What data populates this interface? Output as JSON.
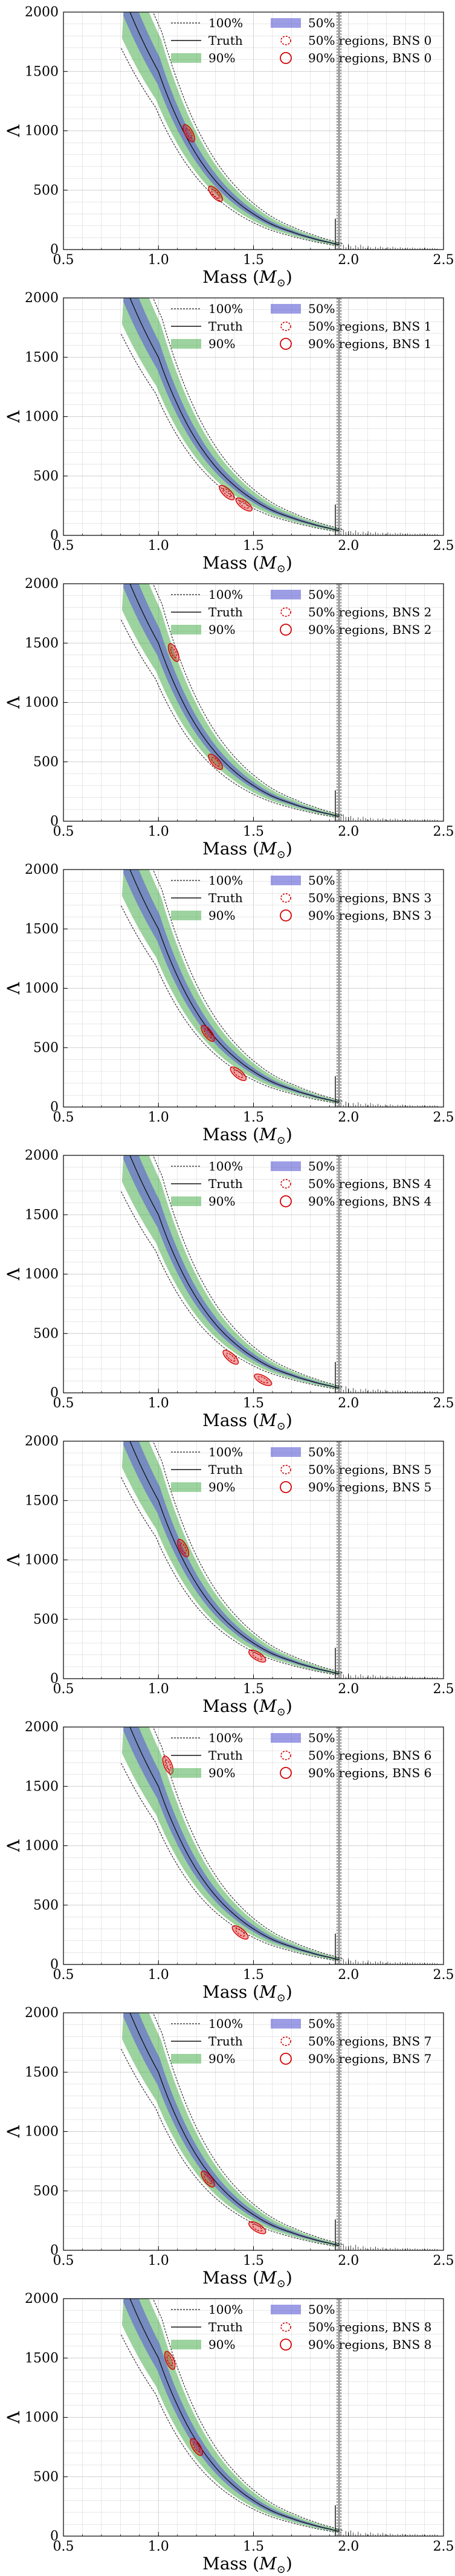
{
  "panels": [
    {
      "index": 0,
      "bns_label": "BNS 0"
    },
    {
      "index": 1,
      "bns_label": "BNS 1"
    },
    {
      "index": 2,
      "bns_label": "BNS 2"
    },
    {
      "index": 3,
      "bns_label": "BNS 3"
    },
    {
      "index": 4,
      "bns_label": "BNS 4"
    },
    {
      "index": 5,
      "bns_label": "BNS 5"
    },
    {
      "index": 6,
      "bns_label": "BNS 6"
    },
    {
      "index": 7,
      "bns_label": "BNS 7"
    },
    {
      "index": 8,
      "bns_label": "BNS 8"
    }
  ],
  "colors": {
    "band_50": "#5b5bd6",
    "band_90": "#4caf50",
    "band_100": "#1b1b1b",
    "truth": "#111111",
    "posterior": "#d40000",
    "grid": "#d0d0d0"
  },
  "chart_data": [
    {
      "type": "line",
      "xlabel": "Mass ($M_{\\odot}$)",
      "ylabel": "Λ",
      "xlim": [
        0.5,
        2.5
      ],
      "ylim": [
        0,
        2000
      ],
      "xticks": [
        "0.5",
        "1.0",
        "1.5",
        "2.0",
        "2.5"
      ],
      "yticks": [
        "0",
        "500",
        "1000",
        "1500",
        "2000"
      ],
      "legend_entries": [
        "100%",
        "50%",
        "Truth",
        "50% regions, BNS 0",
        "90%",
        "90% regions, BNS 0"
      ],
      "legend_position": "top-right",
      "grid": true,
      "truth_curve": {
        "mass": [
          0.85,
          1.0,
          1.1,
          1.2,
          1.3,
          1.4,
          1.5,
          1.6,
          1.7,
          1.8,
          1.9,
          1.95
        ],
        "lambda": [
          2000,
          1500,
          1100,
          800,
          580,
          420,
          300,
          210,
          150,
          100,
          60,
          40
        ]
      },
      "m_max": 1.95,
      "posterior_regions": [
        {
          "mass": 1.16,
          "lambda": 980
        },
        {
          "mass": 1.3,
          "lambda": 470
        }
      ]
    },
    {
      "type": "line",
      "xlabel": "Mass ($M_{\\odot}$)",
      "ylabel": "Λ",
      "xlim": [
        0.5,
        2.5
      ],
      "ylim": [
        0,
        2000
      ],
      "xticks": [
        "0.5",
        "1.0",
        "1.5",
        "2.0",
        "2.5"
      ],
      "yticks": [
        "0",
        "500",
        "1000",
        "1500",
        "2000"
      ],
      "legend_entries": [
        "100%",
        "50%",
        "Truth",
        "50% regions, BNS 1",
        "90%",
        "90% regions, BNS 1"
      ],
      "legend_position": "top-right",
      "grid": true,
      "truth_curve": {
        "mass": [
          0.85,
          1.0,
          1.1,
          1.2,
          1.3,
          1.4,
          1.5,
          1.6,
          1.7,
          1.8,
          1.9,
          1.95
        ],
        "lambda": [
          2000,
          1500,
          1100,
          800,
          580,
          420,
          300,
          210,
          150,
          100,
          60,
          40
        ]
      },
      "m_max": 1.95,
      "posterior_regions": [
        {
          "mass": 1.36,
          "lambda": 360
        },
        {
          "mass": 1.45,
          "lambda": 260
        }
      ]
    },
    {
      "type": "line",
      "xlabel": "Mass ($M_{\\odot}$)",
      "ylabel": "Λ",
      "xlim": [
        0.5,
        2.5
      ],
      "ylim": [
        0,
        2000
      ],
      "xticks": [
        "0.5",
        "1.0",
        "1.5",
        "2.0",
        "2.5"
      ],
      "yticks": [
        "0",
        "500",
        "1000",
        "1500",
        "2000"
      ],
      "legend_entries": [
        "100%",
        "50%",
        "Truth",
        "50% regions, BNS 2",
        "90%",
        "90% regions, BNS 2"
      ],
      "legend_position": "top-right",
      "grid": true,
      "truth_curve": {
        "mass": [
          0.85,
          1.0,
          1.1,
          1.2,
          1.3,
          1.4,
          1.5,
          1.6,
          1.7,
          1.8,
          1.9,
          1.95
        ],
        "lambda": [
          2000,
          1500,
          1100,
          800,
          580,
          420,
          300,
          210,
          150,
          100,
          60,
          40
        ]
      },
      "m_max": 1.95,
      "posterior_regions": [
        {
          "mass": 1.08,
          "lambda": 1420
        },
        {
          "mass": 1.3,
          "lambda": 500
        }
      ]
    },
    {
      "type": "line",
      "xlabel": "Mass ($M_{\\odot}$)",
      "ylabel": "Λ",
      "xlim": [
        0.5,
        2.5
      ],
      "ylim": [
        0,
        2000
      ],
      "xticks": [
        "0.5",
        "1.0",
        "1.5",
        "2.0",
        "2.5"
      ],
      "yticks": [
        "0",
        "500",
        "1000",
        "1500",
        "2000"
      ],
      "legend_entries": [
        "100%",
        "50%",
        "Truth",
        "50% regions, BNS 3",
        "90%",
        "90% regions, BNS 3"
      ],
      "legend_position": "top-right",
      "grid": true,
      "truth_curve": {
        "mass": [
          0.85,
          1.0,
          1.1,
          1.2,
          1.3,
          1.4,
          1.5,
          1.6,
          1.7,
          1.8,
          1.9,
          1.95
        ],
        "lambda": [
          2000,
          1500,
          1100,
          800,
          580,
          420,
          300,
          210,
          150,
          100,
          60,
          40
        ]
      },
      "m_max": 1.95,
      "posterior_regions": [
        {
          "mass": 1.26,
          "lambda": 620
        },
        {
          "mass": 1.42,
          "lambda": 280
        }
      ]
    },
    {
      "type": "line",
      "xlabel": "Mass ($M_{\\odot}$)",
      "ylabel": "Λ",
      "xlim": [
        0.5,
        2.5
      ],
      "ylim": [
        0,
        2000
      ],
      "xticks": [
        "0.5",
        "1.0",
        "1.5",
        "2.0",
        "2.5"
      ],
      "yticks": [
        "0",
        "500",
        "1000",
        "1500",
        "2000"
      ],
      "legend_entries": [
        "100%",
        "50%",
        "Truth",
        "50% regions, BNS 4",
        "90%",
        "90% regions, BNS 4"
      ],
      "legend_position": "top-right",
      "grid": true,
      "truth_curve": {
        "mass": [
          0.85,
          1.0,
          1.1,
          1.2,
          1.3,
          1.4,
          1.5,
          1.6,
          1.7,
          1.8,
          1.9,
          1.95
        ],
        "lambda": [
          2000,
          1500,
          1100,
          800,
          580,
          420,
          300,
          210,
          150,
          100,
          60,
          40
        ]
      },
      "m_max": 1.95,
      "posterior_regions": [
        {
          "mass": 1.38,
          "lambda": 300
        },
        {
          "mass": 1.55,
          "lambda": 110
        }
      ]
    },
    {
      "type": "line",
      "xlabel": "Mass ($M_{\\odot}$)",
      "ylabel": "Λ",
      "xlim": [
        0.5,
        2.5
      ],
      "ylim": [
        0,
        2000
      ],
      "xticks": [
        "0.5",
        "1.0",
        "1.5",
        "2.0",
        "2.5"
      ],
      "yticks": [
        "0",
        "500",
        "1000",
        "1500",
        "2000"
      ],
      "legend_entries": [
        "100%",
        "50%",
        "Truth",
        "50% regions, BNS 5",
        "90%",
        "90% regions, BNS 5"
      ],
      "legend_position": "top-right",
      "grid": true,
      "truth_curve": {
        "mass": [
          0.85,
          1.0,
          1.1,
          1.2,
          1.3,
          1.4,
          1.5,
          1.6,
          1.7,
          1.8,
          1.9,
          1.95
        ],
        "lambda": [
          2000,
          1500,
          1100,
          800,
          580,
          420,
          300,
          210,
          150,
          100,
          60,
          40
        ]
      },
      "m_max": 1.95,
      "posterior_regions": [
        {
          "mass": 1.13,
          "lambda": 1100
        },
        {
          "mass": 1.52,
          "lambda": 190
        }
      ]
    },
    {
      "type": "line",
      "xlabel": "Mass ($M_{\\odot}$)",
      "ylabel": "Λ",
      "xlim": [
        0.5,
        2.5
      ],
      "ylim": [
        0,
        2000
      ],
      "xticks": [
        "0.5",
        "1.0",
        "1.5",
        "2.0",
        "2.5"
      ],
      "yticks": [
        "0",
        "500",
        "1000",
        "1500",
        "2000"
      ],
      "legend_entries": [
        "100%",
        "50%",
        "Truth",
        "50% regions, BNS 6",
        "90%",
        "90% regions, BNS 6"
      ],
      "legend_position": "top-right",
      "grid": true,
      "truth_curve": {
        "mass": [
          0.85,
          1.0,
          1.1,
          1.2,
          1.3,
          1.4,
          1.5,
          1.6,
          1.7,
          1.8,
          1.9,
          1.95
        ],
        "lambda": [
          2000,
          1500,
          1100,
          800,
          580,
          420,
          300,
          210,
          150,
          100,
          60,
          40
        ]
      },
      "m_max": 1.95,
      "posterior_regions": [
        {
          "mass": 1.05,
          "lambda": 1680
        },
        {
          "mass": 1.43,
          "lambda": 270
        }
      ]
    },
    {
      "type": "line",
      "xlabel": "Mass ($M_{\\odot}$)",
      "ylabel": "Λ",
      "xlim": [
        0.5,
        2.5
      ],
      "ylim": [
        0,
        2000
      ],
      "xticks": [
        "0.5",
        "1.0",
        "1.5",
        "2.0",
        "2.5"
      ],
      "yticks": [
        "0",
        "500",
        "1000",
        "1500",
        "2000"
      ],
      "legend_entries": [
        "100%",
        "50%",
        "Truth",
        "50% regions, BNS 7",
        "90%",
        "90% regions, BNS 7"
      ],
      "legend_position": "top-right",
      "grid": true,
      "truth_curve": {
        "mass": [
          0.85,
          1.0,
          1.1,
          1.2,
          1.3,
          1.4,
          1.5,
          1.6,
          1.7,
          1.8,
          1.9,
          1.95
        ],
        "lambda": [
          2000,
          1500,
          1100,
          800,
          580,
          420,
          300,
          210,
          150,
          100,
          60,
          40
        ]
      },
      "m_max": 1.95,
      "posterior_regions": [
        {
          "mass": 1.26,
          "lambda": 600
        },
        {
          "mass": 1.52,
          "lambda": 190
        }
      ]
    },
    {
      "type": "line",
      "xlabel": "Mass ($M_{\\odot}$)",
      "ylabel": "Λ",
      "xlim": [
        0.5,
        2.5
      ],
      "ylim": [
        0,
        2000
      ],
      "xticks": [
        "0.5",
        "1.0",
        "1.5",
        "2.0",
        "2.5"
      ],
      "yticks": [
        "0",
        "500",
        "1000",
        "1500",
        "2000"
      ],
      "legend_entries": [
        "100%",
        "50%",
        "Truth",
        "50% regions, BNS 8",
        "90%",
        "90% regions, BNS 8"
      ],
      "legend_position": "top-right",
      "grid": true,
      "truth_curve": {
        "mass": [
          0.85,
          1.0,
          1.1,
          1.2,
          1.3,
          1.4,
          1.5,
          1.6,
          1.7,
          1.8,
          1.9,
          1.95
        ],
        "lambda": [
          2000,
          1500,
          1100,
          800,
          580,
          420,
          300,
          210,
          150,
          100,
          60,
          40
        ]
      },
      "m_max": 1.95,
      "posterior_regions": [
        {
          "mass": 1.06,
          "lambda": 1480
        },
        {
          "mass": 1.2,
          "lambda": 750
        }
      ]
    }
  ]
}
